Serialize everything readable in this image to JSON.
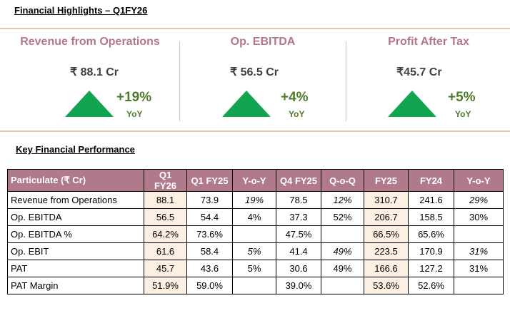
{
  "title": "Financial Highlights – Q1FY26",
  "kpis": [
    {
      "label": "Revenue from Operations",
      "value": "₹ 88.1 Cr",
      "change": "+19%",
      "period": "YoY",
      "trend": "up"
    },
    {
      "label": "Op. EBITDA",
      "value": "₹ 56.5 Cr",
      "change": "+4%",
      "period": "YoY",
      "trend": "up"
    },
    {
      "label": "Profit After Tax",
      "value": "₹45.7 Cr",
      "change": "+5%",
      "period": "YoY",
      "trend": "up"
    }
  ],
  "colors": {
    "accent": "#b07a8a",
    "up": "#13a451",
    "change_text": "#4f7a28",
    "highlight": "#fdf0e2"
  },
  "table": {
    "title": "Key Financial Performance",
    "headers": [
      "Particulate  (₹ Cr)",
      "Q1 FY26",
      "Q1 FY25",
      "Y-o-Y",
      "Q4 FY25",
      "Q-o-Q",
      "FY25",
      "FY24",
      "Y-o-Y"
    ],
    "rows": [
      [
        "Revenue from Operations",
        "88.1",
        "73.9",
        "19%",
        "78.5",
        "12%",
        "310.7",
        "241.6",
        "29%"
      ],
      [
        "Op. EBITDA",
        "56.5",
        "54.4",
        "4%",
        "37.3",
        "52%",
        "206.7",
        "158.5",
        "30%"
      ],
      [
        "Op. EBITDA %",
        "64.2%",
        "73.6%",
        "",
        "47.5%",
        "",
        "66.5%",
        "65.6%",
        ""
      ],
      [
        "Op. EBIT",
        "61.6",
        "58.4",
        "5%",
        "41.4",
        "49%",
        "223.5",
        "170.9",
        "31%"
      ],
      [
        "PAT",
        "45.7",
        "43.6",
        "5%",
        "30.6",
        "49%",
        "166.6",
        "127.2",
        "31%"
      ],
      [
        "PAT Margin",
        "51.9%",
        "59.0%",
        "",
        "39.0%",
        "",
        "53.6%",
        "52.6%",
        ""
      ]
    ]
  }
}
